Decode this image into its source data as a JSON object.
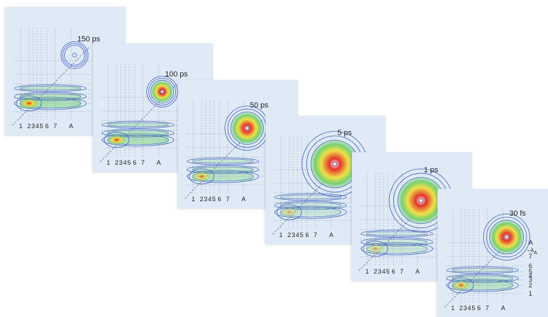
{
  "panels": [
    {
      "time_label": "150 ps",
      "peak_strength": 0.0
    },
    {
      "time_label": "100 ps",
      "peak_strength": 0.1
    },
    {
      "time_label": "50 ps",
      "peak_strength": 0.45
    },
    {
      "time_label": "5 ps",
      "peak_strength": 1.0
    },
    {
      "time_label": "1 ps",
      "peak_strength": 0.95
    },
    {
      "time_label": "30 fs",
      "peak_strength": 0.5
    }
  ],
  "x_tick_labels": [
    "1",
    "2",
    "3",
    "4",
    "5",
    "6",
    "7",
    "A"
  ],
  "y_tick_labels": [
    "1",
    "2",
    "3",
    "4",
    "5",
    "6",
    "7",
    "A"
  ],
  "lambda_label": "λ",
  "lambda_subscript": "A",
  "colors": {
    "panel_bg": "#dfeaf6",
    "contour": "#3f5fc0",
    "low": "#6fd06a",
    "mid": "#f0e040",
    "high": "#e52a20"
  }
}
